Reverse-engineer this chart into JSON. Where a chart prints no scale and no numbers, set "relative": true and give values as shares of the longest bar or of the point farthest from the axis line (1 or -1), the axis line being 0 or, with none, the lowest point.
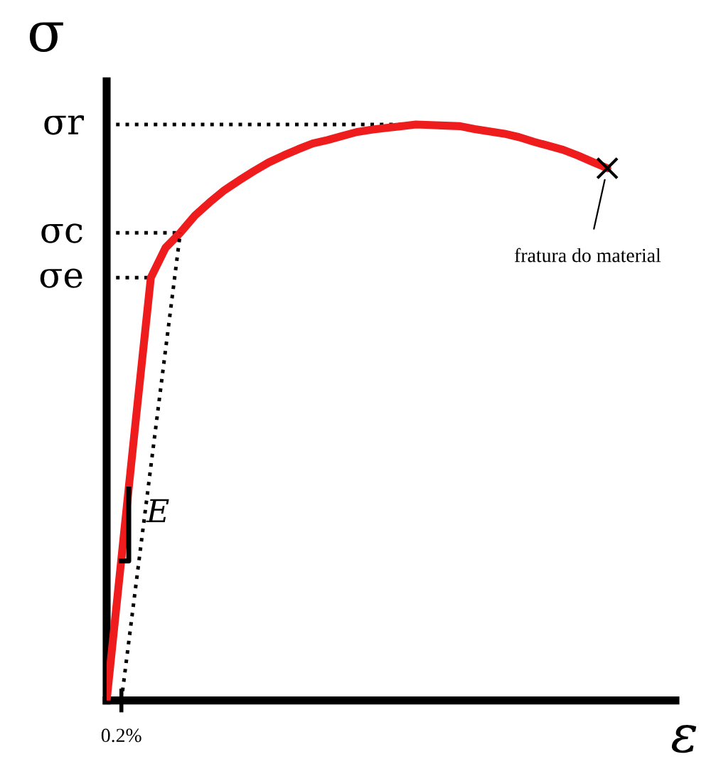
{
  "chart_data": {
    "type": "line",
    "relative": true,
    "xlabel": "ε",
    "ylabel": "σ",
    "categories": [
      null,
      null,
      null,
      null,
      null,
      null,
      null,
      null,
      null,
      null,
      null,
      null,
      null,
      null,
      null,
      null,
      null,
      null,
      null,
      null,
      null,
      null,
      null,
      null,
      null,
      null,
      null,
      null,
      null,
      null,
      null,
      null,
      null,
      null,
      null
    ],
    "series": [
      {
        "color": "#ee1c1c",
        "line_style": "solid",
        "marker": "none",
        "values": [
          0,
          0.246,
          0.492,
          0.734,
          0.786,
          0.812,
          0.842,
          0.865,
          0.886,
          0.903,
          0.919,
          0.934,
          0.946,
          0.957,
          0.967,
          0.973,
          0.98,
          0.987,
          0.991,
          0.994,
          0.997,
          1,
          0.999,
          0.998,
          0.997,
          0.992,
          0.988,
          0.984,
          0.978,
          0.97,
          0.963,
          0.956,
          0.946,
          0.935,
          0.924
        ]
      },
      {
        "type": "line",
        "color": "#000000",
        "line_style": "dotted",
        "marker": "none",
        "values": [
          null,
          0,
          0.203,
          0.406,
          0.609,
          0.812,
          null,
          null,
          null,
          null,
          null,
          null,
          null,
          null,
          null,
          null,
          null,
          null,
          null,
          null,
          null,
          null,
          null,
          null,
          null,
          null,
          null,
          null,
          null,
          null,
          null,
          null,
          null,
          null,
          null
        ]
      }
    ],
    "ref_lines": [
      {
        "axis": "y",
        "value": 1,
        "label": "σr",
        "color": "#000000",
        "line_style": "dotted"
      },
      {
        "axis": "y",
        "value": 0.812,
        "label": "σc",
        "color": "#000000",
        "line_style": "dotted"
      },
      {
        "axis": "y",
        "value": 0.734,
        "label": "σe",
        "color": "#000000",
        "line_style": "dotted"
      }
    ],
    "annotations": [
      "fratura do material",
      "0.2%",
      "E"
    ]
  }
}
